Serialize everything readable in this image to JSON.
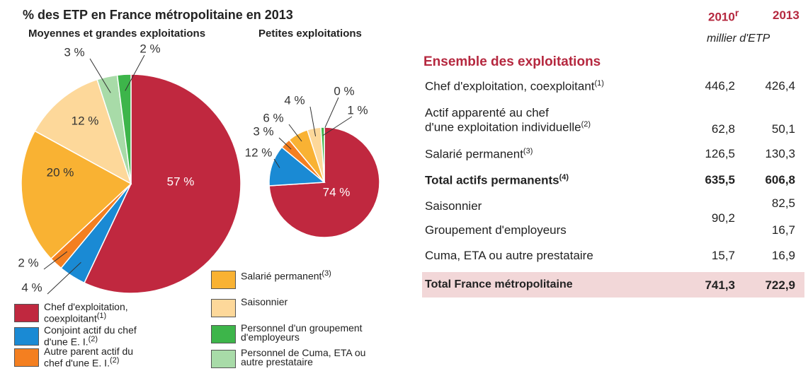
{
  "chart_data": [
    {
      "type": "pie",
      "title": "% des ETP en France métropolitaine en 2013",
      "subtitle": "Moyennes et grandes exploitations",
      "categories": [
        {
          "label": "Chef d'exploitation, coexploitant",
          "note": "(1)"
        },
        {
          "label": "Conjoint actif du chef d'une E. I.",
          "note": "(2)"
        },
        {
          "label": "Autre parent actif du chef d'une E. I.",
          "note": "(2)"
        },
        {
          "label": "Salarié permanent",
          "note": "(3)"
        },
        {
          "label": "Saisonnier"
        },
        {
          "label": "Personnel de Cuma, ETA ou autre prestataire"
        },
        {
          "label": "Personnel d'un groupement d'employeurs"
        }
      ],
      "colors": [
        "#c0283f",
        "#1a8ad4",
        "#f47f20",
        "#f9b233",
        "#fdd89a",
        "#a8dba8",
        "#3db54a"
      ],
      "values": [
        57,
        4,
        2,
        20,
        12,
        3,
        2
      ],
      "value_labels": [
        "57 %",
        "4 %",
        "2 %",
        "20 %",
        "12 %",
        "3 %",
        "2 %"
      ]
    },
    {
      "type": "pie",
      "subtitle": "Petites exploitations",
      "values": [
        74,
        12,
        3,
        6,
        4,
        0,
        1
      ],
      "value_labels": [
        "74 %",
        "12 %",
        "3 %",
        "6 %",
        "4 %",
        "0 %",
        "1 %"
      ]
    }
  ],
  "table": {
    "columns": [
      {
        "year": "2010",
        "note": "r"
      },
      {
        "year": "2013"
      }
    ],
    "unit": "millier d'ETP",
    "section": "Ensemble des exploitations",
    "rows": [
      {
        "label": "Chef d'exploitation, coexploitant",
        "note": "(1)",
        "v2010": "446,2",
        "v2013": "426,4"
      },
      {
        "label": "Actif apparenté au chef",
        "label2": "d'une exploitation individuelle",
        "note": "(2)",
        "v2010": "62,8",
        "v2013": "50,1"
      },
      {
        "label": "Salarié permanent",
        "note": "(3)",
        "v2010": "126,5",
        "v2013": "130,3"
      },
      {
        "label": "Total actifs permanents",
        "note": "(4)",
        "v2010": "635,5",
        "v2013": "606,8"
      },
      {
        "label": "Saisonnier",
        "v2010": "90,2",
        "v2013": "82,5"
      },
      {
        "label": "Groupement d'employeurs",
        "v2013": "16,7"
      },
      {
        "label": "Cuma, ETA ou autre prestataire",
        "v2010": "15,7",
        "v2013": "16,9"
      },
      {
        "label": "Total France métropolitaine",
        "v2010": "741,3",
        "v2013": "722,9"
      }
    ]
  }
}
